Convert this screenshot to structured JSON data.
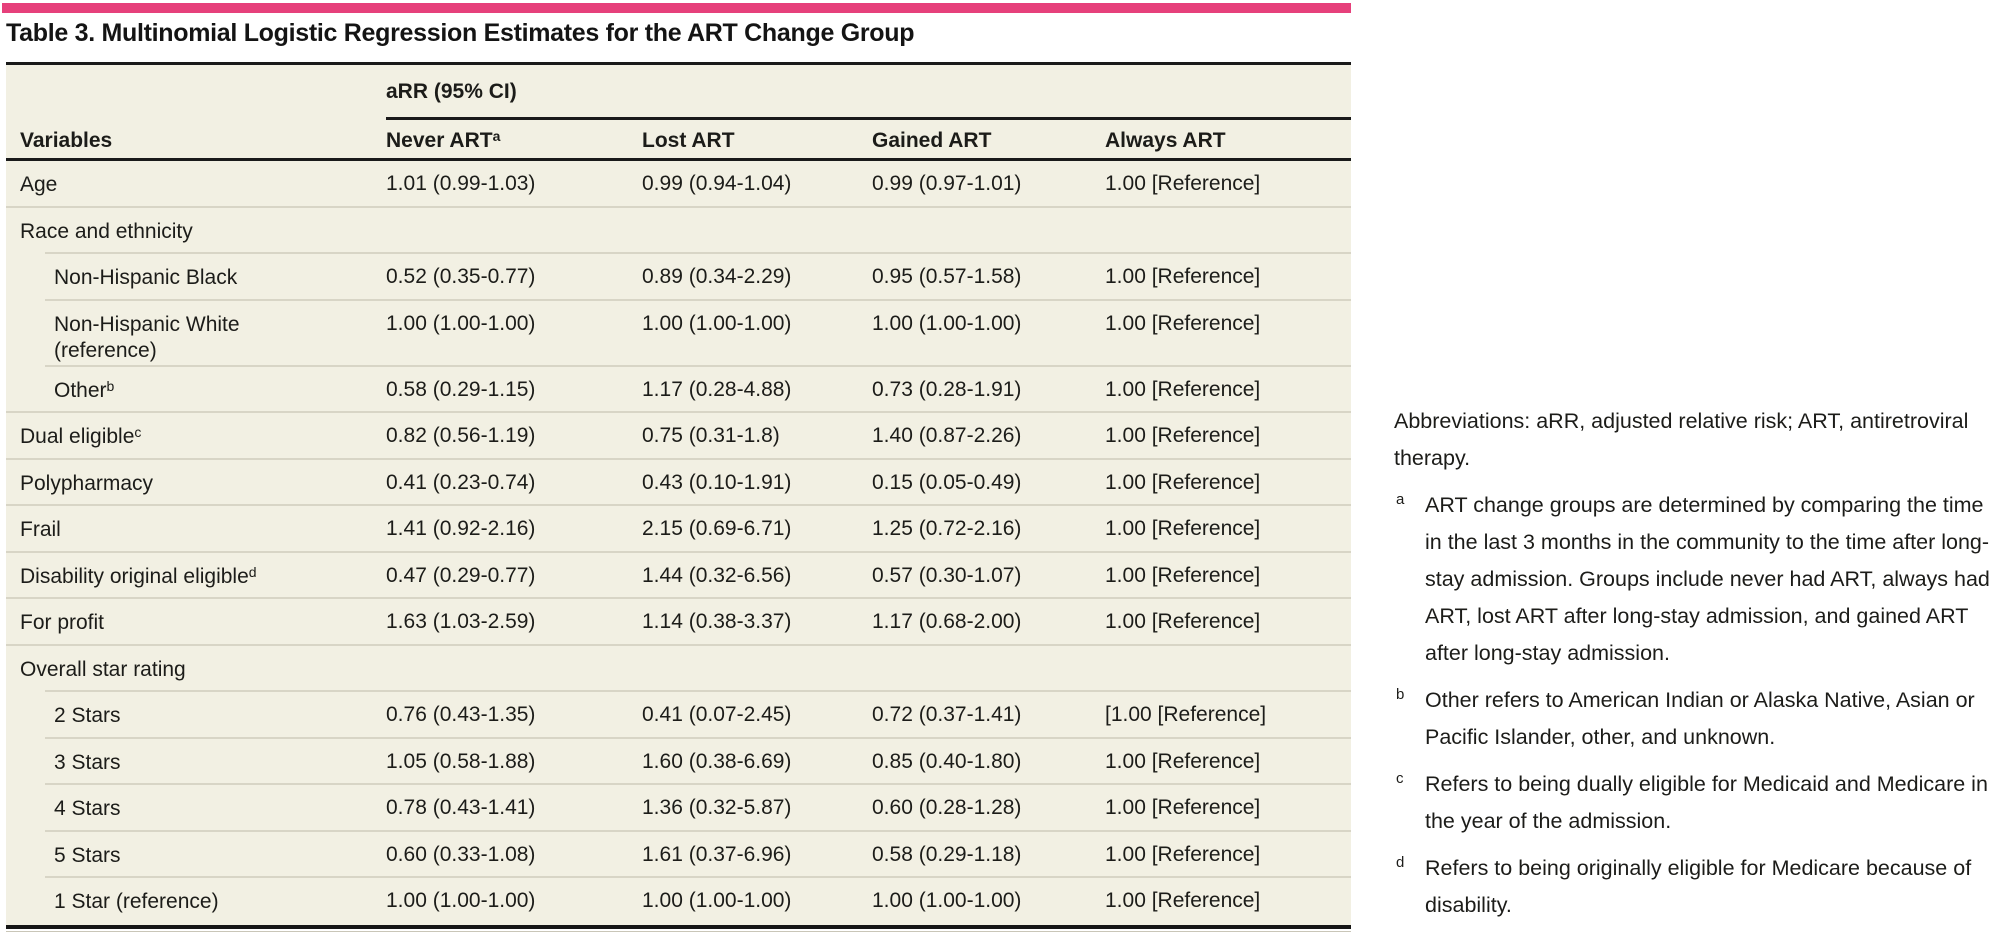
{
  "accent_color": "#E6407B",
  "table_bg": "#F2F0E3",
  "title": "Table 3. Multinomial Logistic Regression Estimates for the ART Change Group",
  "table": {
    "span_header": "aRR (95% CI)",
    "columns": [
      {
        "label": "Variables",
        "sup": ""
      },
      {
        "label": "Never ART",
        "sup": "a"
      },
      {
        "label": "Lost ART",
        "sup": ""
      },
      {
        "label": "Gained ART",
        "sup": ""
      },
      {
        "label": "Always ART",
        "sup": ""
      }
    ],
    "rows": [
      {
        "label": "Age",
        "sup": "",
        "indent": false,
        "tall": false,
        "sep": "full",
        "values": [
          "1.01 (0.99-1.03)",
          "0.99 (0.94-1.04)",
          "0.99 (0.97-1.01)",
          "1.00 [Reference]"
        ]
      },
      {
        "label": "Race and ethnicity",
        "sup": "",
        "indent": false,
        "tall": false,
        "sep": "indent",
        "values": [
          "",
          "",
          "",
          ""
        ]
      },
      {
        "label": "Non-Hispanic Black",
        "sup": "",
        "indent": true,
        "tall": false,
        "sep": "indent",
        "values": [
          "0.52 (0.35-0.77)",
          "0.89 (0.34-2.29)",
          "0.95 (0.57-1.58)",
          "1.00 [Reference]"
        ]
      },
      {
        "label": "Non-Hispanic White\n(reference)",
        "sup": "",
        "indent": true,
        "tall": true,
        "sep": "indent",
        "values": [
          "1.00 (1.00-1.00)",
          "1.00 (1.00-1.00)",
          "1.00 (1.00-1.00)",
          "1.00 [Reference]"
        ]
      },
      {
        "label": "Other",
        "sup": "b",
        "indent": true,
        "tall": false,
        "sep": "full",
        "values": [
          "0.58 (0.29-1.15)",
          "1.17 (0.28-4.88)",
          "0.73 (0.28-1.91)",
          "1.00 [Reference]"
        ]
      },
      {
        "label": "Dual eligible",
        "sup": "c",
        "indent": false,
        "tall": false,
        "sep": "full",
        "values": [
          "0.82 (0.56-1.19)",
          "0.75 (0.31-1.8)",
          "1.40 (0.87-2.26)",
          "1.00 [Reference]"
        ]
      },
      {
        "label": "Polypharmacy",
        "sup": "",
        "indent": false,
        "tall": false,
        "sep": "full",
        "values": [
          "0.41 (0.23-0.74)",
          "0.43 (0.10-1.91)",
          "0.15 (0.05-0.49)",
          "1.00 [Reference]"
        ]
      },
      {
        "label": "Frail",
        "sup": "",
        "indent": false,
        "tall": false,
        "sep": "full",
        "values": [
          "1.41 (0.92-2.16)",
          "2.15 (0.69-6.71)",
          "1.25 (0.72-2.16)",
          "1.00 [Reference]"
        ]
      },
      {
        "label": "Disability original eligible",
        "sup": "d",
        "indent": false,
        "tall": false,
        "sep": "full",
        "values": [
          "0.47 (0.29-0.77)",
          "1.44 (0.32-6.56)",
          "0.57 (0.30-1.07)",
          "1.00 [Reference]"
        ]
      },
      {
        "label": "For profit",
        "sup": "",
        "indent": false,
        "tall": false,
        "sep": "full",
        "values": [
          "1.63 (1.03-2.59)",
          "1.14 (0.38-3.37)",
          "1.17 (0.68-2.00)",
          "1.00 [Reference]"
        ]
      },
      {
        "label": "Overall star rating",
        "sup": "",
        "indent": false,
        "tall": false,
        "sep": "indent",
        "values": [
          "",
          "",
          "",
          ""
        ]
      },
      {
        "label": "2 Stars",
        "sup": "",
        "indent": true,
        "tall": false,
        "sep": "indent",
        "values": [
          "0.76 (0.43-1.35)",
          "0.41 (0.07-2.45)",
          "0.72 (0.37-1.41)",
          "[1.00 [Reference]"
        ]
      },
      {
        "label": "3 Stars",
        "sup": "",
        "indent": true,
        "tall": false,
        "sep": "indent",
        "values": [
          "1.05 (0.58-1.88)",
          "1.60 (0.38-6.69)",
          "0.85 (0.40-1.80)",
          "1.00 [Reference]"
        ]
      },
      {
        "label": "4 Stars",
        "sup": "",
        "indent": true,
        "tall": false,
        "sep": "indent",
        "values": [
          "0.78 (0.43-1.41)",
          "1.36 (0.32-5.87)",
          "0.60 (0.28-1.28)",
          "1.00 [Reference]"
        ]
      },
      {
        "label": "5 Stars",
        "sup": "",
        "indent": true,
        "tall": false,
        "sep": "indent",
        "values": [
          "0.60 (0.33-1.08)",
          "1.61 (0.37-6.96)",
          "0.58 (0.29-1.18)",
          "1.00 [Reference]"
        ]
      },
      {
        "label": "1 Star (reference)",
        "sup": "",
        "indent": true,
        "tall": false,
        "sep": "none",
        "values": [
          "1.00 (1.00-1.00)",
          "1.00 (1.00-1.00)",
          "1.00 (1.00-1.00)",
          "1.00 [Reference]"
        ]
      }
    ]
  },
  "notes": {
    "abbreviations": "Abbreviations: aRR, adjusted relative risk; ART, antiretroviral therapy.",
    "footnotes": [
      {
        "marker": "a",
        "text": "ART change groups are determined by comparing the time in the last 3 months in the community to the time after long-stay admission. Groups include never had ART, always had ART, lost ART after long-stay admission, and gained ART after long-stay admission."
      },
      {
        "marker": "b",
        "text": "Other refers to American Indian or Alaska Native, Asian or Pacific Islander, other, and unknown."
      },
      {
        "marker": "c",
        "text": "Refers to being dually eligible for Medicaid and Medicare in the year of the admission."
      },
      {
        "marker": "d",
        "text": "Refers to being originally eligible for Medicare because of disability."
      }
    ]
  }
}
